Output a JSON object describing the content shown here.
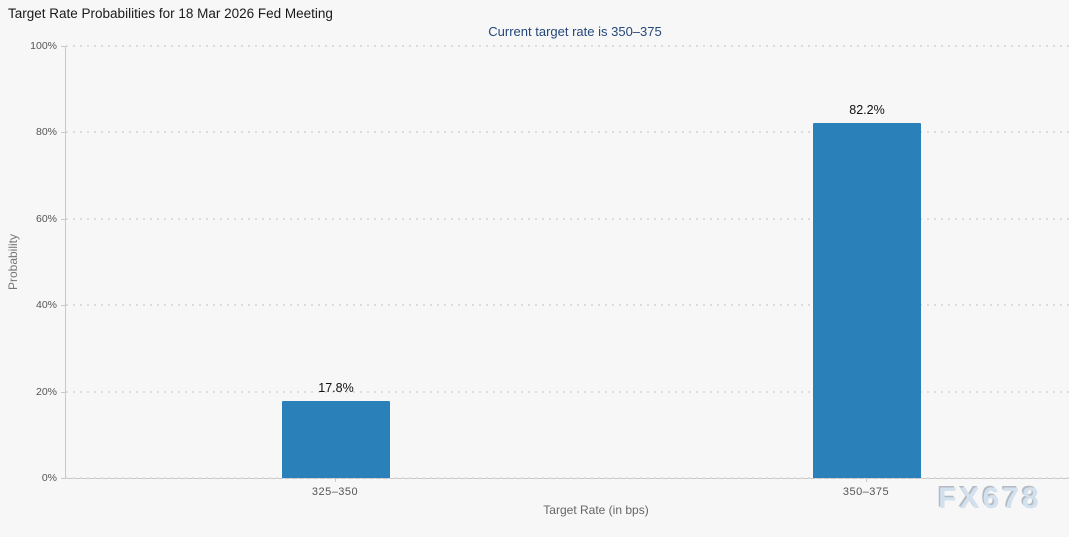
{
  "chart_data": {
    "type": "bar",
    "title": "Target Rate Probabilities for 18 Mar 2026 Fed Meeting",
    "subtitle": "Current target rate is 350–375",
    "categories": [
      "325–350",
      "350–375"
    ],
    "values": [
      17.8,
      82.2
    ],
    "value_labels": [
      "17.8%",
      "82.2%"
    ],
    "xlabel": "Target Rate (in bps)",
    "ylabel": "Probability",
    "ylim": [
      0,
      100
    ],
    "ytick_values": [
      0,
      20,
      40,
      60,
      80,
      100
    ],
    "ytick_labels": [
      "0%",
      "20%",
      "40%",
      "60%",
      "80%",
      "100%"
    ],
    "grid": "dotted-horizontal",
    "legend": "none",
    "bar_color": "#2a80b9",
    "title_color": "#1a1a1a",
    "subtitle_color": "#25477c",
    "axis_text_color": "#555555",
    "background_color": "#f7f7f7",
    "watermark": "FX678"
  }
}
